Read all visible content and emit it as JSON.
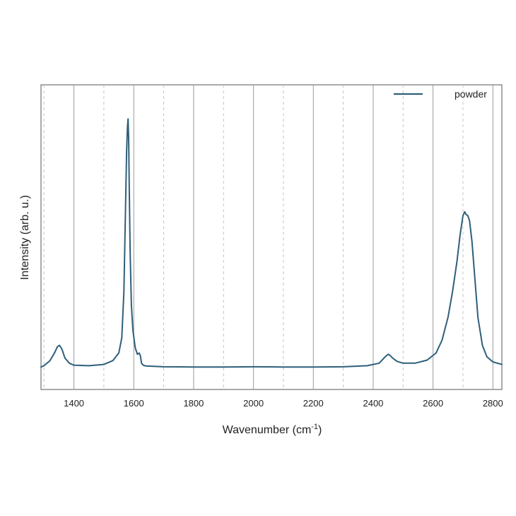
{
  "chart_data": {
    "type": "line",
    "xlabel": "Wavenumber (cm",
    "xlabel_sup": "-1",
    "xlabel_end": ")",
    "ylabel": "Intensity (arb. u.)",
    "xlim": [
      1290,
      2830
    ],
    "ylim": [
      0,
      1
    ],
    "xticks": [
      "1400",
      "1600",
      "1800",
      "2000",
      "2200",
      "2400",
      "2600",
      "2800"
    ],
    "grid": true,
    "legend_position": "top-right",
    "series": [
      {
        "name": "powder",
        "color": "#2f5f7a",
        "x": [
          1290,
          1300,
          1320,
          1335,
          1345,
          1352,
          1360,
          1370,
          1385,
          1400,
          1450,
          1500,
          1530,
          1550,
          1560,
          1567,
          1572,
          1576,
          1579,
          1581,
          1583,
          1585,
          1588,
          1592,
          1597,
          1605,
          1612,
          1618,
          1622,
          1626,
          1632,
          1640,
          1660,
          1700,
          1800,
          1900,
          2000,
          2100,
          2200,
          2300,
          2380,
          2420,
          2440,
          2450,
          2455,
          2465,
          2480,
          2500,
          2540,
          2580,
          2610,
          2630,
          2650,
          2665,
          2680,
          2690,
          2700,
          2706,
          2710,
          2716,
          2722,
          2730,
          2740,
          2750,
          2765,
          2780,
          2800,
          2830
        ],
        "y": [
          0.005,
          0.01,
          0.03,
          0.06,
          0.085,
          0.09,
          0.075,
          0.04,
          0.02,
          0.012,
          0.01,
          0.015,
          0.03,
          0.06,
          0.12,
          0.3,
          0.6,
          0.85,
          0.95,
          0.98,
          0.9,
          0.7,
          0.45,
          0.25,
          0.15,
          0.08,
          0.055,
          0.06,
          0.05,
          0.02,
          0.012,
          0.009,
          0.008,
          0.006,
          0.005,
          0.005,
          0.006,
          0.005,
          0.005,
          0.006,
          0.01,
          0.02,
          0.045,
          0.055,
          0.052,
          0.04,
          0.027,
          0.02,
          0.02,
          0.032,
          0.06,
          0.11,
          0.2,
          0.3,
          0.42,
          0.52,
          0.6,
          0.615,
          0.605,
          0.6,
          0.58,
          0.5,
          0.35,
          0.2,
          0.09,
          0.045,
          0.025,
          0.015
        ]
      }
    ]
  }
}
